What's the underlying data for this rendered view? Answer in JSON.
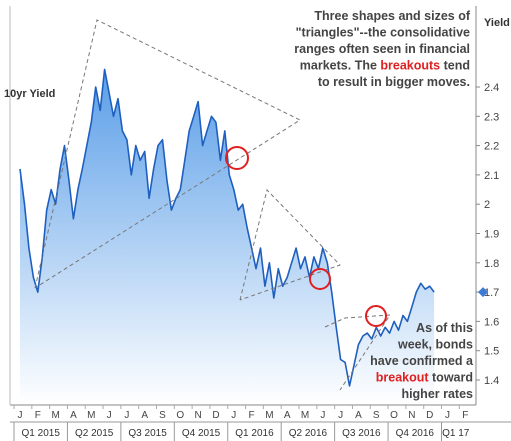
{
  "chart_data": {
    "type": "area",
    "title": "10yr Yield",
    "ylabel": "Yield",
    "ylim": [
      1.3,
      2.55
    ],
    "yticks": [
      "1.4",
      "1.5",
      "1.6",
      "1.7",
      "1.8",
      "1.9",
      "2",
      "2.1",
      "2.2",
      "2.3",
      "2.4"
    ],
    "month_labels": [
      "J",
      "F",
      "M",
      "A",
      "M",
      "J",
      "J",
      "A",
      "S",
      "O",
      "N",
      "D",
      "J",
      "F",
      "M",
      "A",
      "M",
      "J",
      "J",
      "A",
      "S",
      "O",
      "N",
      "D",
      "J",
      "F"
    ],
    "quarter_labels": [
      "Q1 2015",
      "Q2 2015",
      "Q3 2015",
      "Q4 2015",
      "Q1 2016",
      "Q2 2016",
      "Q3 2016",
      "Q4 2016",
      "Q1 17"
    ],
    "last_value_label": "1.7",
    "colors": {
      "line": "#1f5fbf",
      "fill_top": "#5a9ee8",
      "fill_bottom": "#ffffff",
      "circle": "#e02020",
      "triangle": "#777777",
      "last_marker": "#3a7bd5"
    },
    "series": [
      {
        "x": [
          0,
          0.25,
          0.5,
          0.75,
          1.0,
          1.25,
          1.5,
          1.75,
          2.0,
          2.25,
          2.5,
          2.75,
          3.0,
          3.25,
          3.5,
          3.75,
          4.0,
          4.25,
          4.5,
          4.75,
          5.0,
          5.25,
          5.5,
          5.75,
          6.0,
          6.25,
          6.5,
          6.75,
          7.0,
          7.25,
          7.5,
          7.75,
          8.0,
          8.25,
          8.5,
          8.75,
          9.0,
          9.25,
          9.5,
          9.75,
          10.0,
          10.25,
          10.5,
          10.75,
          11.0,
          11.25,
          11.5,
          11.75,
          12.0,
          12.25,
          12.5,
          12.75,
          13.0,
          13.25,
          13.5,
          13.75,
          14.0,
          14.25,
          14.5,
          14.75,
          15.0,
          15.25,
          15.5,
          15.75,
          16.0,
          16.25,
          16.5,
          16.75,
          17.0,
          17.25,
          17.5,
          17.75,
          18.0,
          18.25,
          18.5,
          18.75,
          19.0,
          19.25,
          19.5,
          19.75,
          20.0,
          20.25,
          20.5,
          20.75,
          21.0,
          21.25,
          21.5,
          21.75,
          22.0,
          22.25,
          22.5,
          22.75,
          23.0,
          23.25
        ],
        "values": [
          2.12,
          2.0,
          1.85,
          1.75,
          1.7,
          1.82,
          1.98,
          2.05,
          2.0,
          2.12,
          2.2,
          2.08,
          1.95,
          2.05,
          2.12,
          2.2,
          2.28,
          2.4,
          2.32,
          2.46,
          2.38,
          2.3,
          2.36,
          2.25,
          2.22,
          2.1,
          2.2,
          2.15,
          2.18,
          2.02,
          2.12,
          2.2,
          2.22,
          2.08,
          1.98,
          2.02,
          2.05,
          2.15,
          2.25,
          2.3,
          2.35,
          2.2,
          2.25,
          2.3,
          2.28,
          2.15,
          2.25,
          2.1,
          2.05,
          1.98,
          2.0,
          1.92,
          1.85,
          1.78,
          1.85,
          1.72,
          1.8,
          1.68,
          1.78,
          1.72,
          1.75,
          1.8,
          1.85,
          1.78,
          1.82,
          1.75,
          1.82,
          1.78,
          1.85,
          1.8,
          1.7,
          1.58,
          1.47,
          1.46,
          1.38,
          1.45,
          1.52,
          1.55,
          1.56,
          1.54,
          1.58,
          1.55,
          1.58,
          1.56,
          1.6,
          1.57,
          1.62,
          1.6,
          1.65,
          1.7,
          1.73,
          1.71,
          1.72,
          1.7
        ]
      }
    ],
    "annotations": [
      {
        "lines": [
          [
            {
              "t": "Three shapes and sizes of",
              "hl": false
            }
          ],
          [
            {
              "t": "\"triangles\"--the consolidative",
              "hl": false
            }
          ],
          [
            {
              "t": "ranges often seen in financial",
              "hl": false
            }
          ],
          [
            {
              "t": "markets.  The ",
              "hl": false
            },
            {
              "t": "breakouts",
              "hl": true
            },
            {
              "t": " tend",
              "hl": false
            }
          ],
          [
            {
              "t": "to result in bigger moves.",
              "hl": false
            }
          ]
        ]
      },
      {
        "lines": [
          [
            {
              "t": "As of this",
              "hl": false
            }
          ],
          [
            {
              "t": "week, bonds",
              "hl": false
            }
          ],
          [
            {
              "t": "have confirmed a",
              "hl": false
            }
          ],
          [
            {
              "t": "breakout",
              "hl": true
            },
            {
              "t": " toward",
              "hl": false
            }
          ],
          [
            {
              "t": "higher rates",
              "hl": false
            }
          ]
        ]
      }
    ]
  }
}
